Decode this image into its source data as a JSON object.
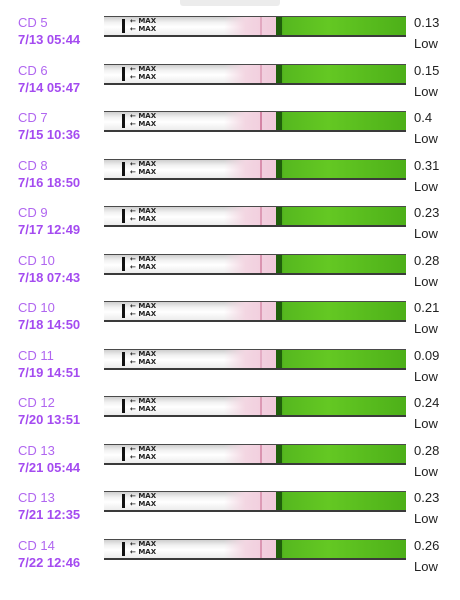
{
  "readings": [
    {
      "cycle_day": "CD 5",
      "date_time": "7/13  05:44",
      "score": "0.13",
      "level": "Low",
      "test_line_intensity": 0.13
    },
    {
      "cycle_day": "CD 6",
      "date_time": "7/14  05:47",
      "score": "0.15",
      "level": "Low",
      "test_line_intensity": 0.15
    },
    {
      "cycle_day": "CD 7",
      "date_time": "7/15  10:36",
      "score": "0.4",
      "level": "Low",
      "test_line_intensity": 0.4
    },
    {
      "cycle_day": "CD 8",
      "date_time": "7/16  18:50",
      "score": "0.31",
      "level": "Low",
      "test_line_intensity": 0.31
    },
    {
      "cycle_day": "CD 9",
      "date_time": "7/17  12:49",
      "score": "0.23",
      "level": "Low",
      "test_line_intensity": 0.23
    },
    {
      "cycle_day": "CD 10",
      "date_time": "7/18  07:43",
      "score": "0.28",
      "level": "Low",
      "test_line_intensity": 0.28
    },
    {
      "cycle_day": "CD 10",
      "date_time": "7/18  14:50",
      "score": "0.21",
      "level": "Low",
      "test_line_intensity": 0.21
    },
    {
      "cycle_day": "CD 11",
      "date_time": "7/19  14:51",
      "score": "0.09",
      "level": "Low",
      "test_line_intensity": 0.09
    },
    {
      "cycle_day": "CD 12",
      "date_time": "7/20  13:51",
      "score": "0.24",
      "level": "Low",
      "test_line_intensity": 0.24
    },
    {
      "cycle_day": "CD 13",
      "date_time": "7/21  05:44",
      "score": "0.28",
      "level": "Low",
      "test_line_intensity": 0.28
    },
    {
      "cycle_day": "CD 13",
      "date_time": "7/21  12:35",
      "score": "0.23",
      "level": "Low",
      "test_line_intensity": 0.23
    },
    {
      "cycle_day": "CD 14",
      "date_time": "7/22  12:46",
      "score": "0.26",
      "level": "Low",
      "test_line_intensity": 0.26
    }
  ],
  "strip_label": "MAX",
  "icons": {
    "arrow": "left-arrow-icon"
  },
  "colors": {
    "cycle_day_text": "#b066f0",
    "date_text": "#a44bf0",
    "green_handle": "#64c823",
    "test_line": "#d07a9c"
  }
}
